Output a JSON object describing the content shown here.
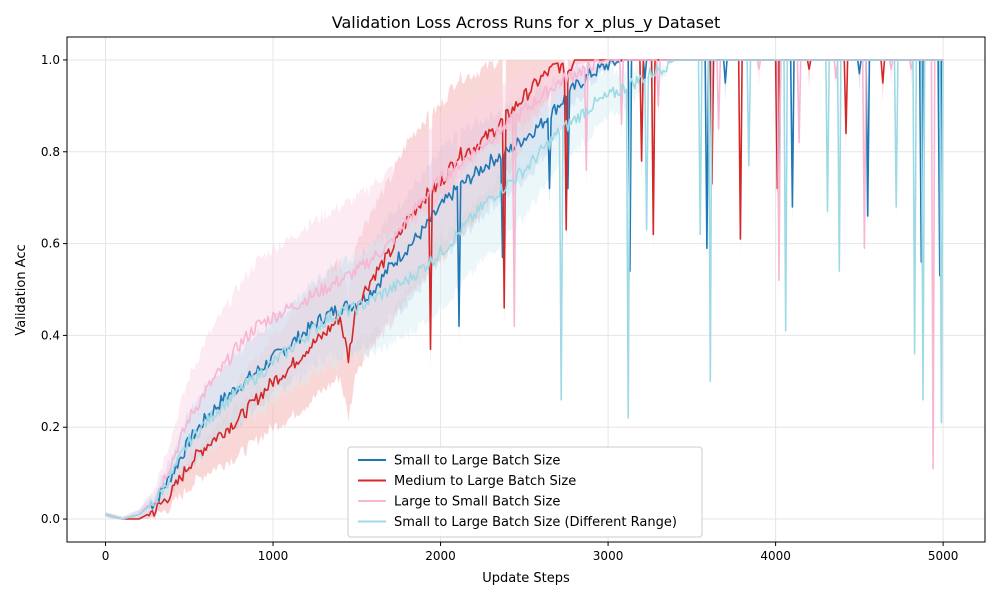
{
  "chart_data": {
    "type": "line",
    "title": "Validation Loss Across Runs for x_plus_y Dataset",
    "xlabel": "Update Steps",
    "ylabel": "Validation Acc",
    "xlim": [
      -230,
      5250
    ],
    "ylim": [
      -0.05,
      1.05
    ],
    "xticks": [
      0,
      1000,
      2000,
      3000,
      4000,
      5000
    ],
    "yticks": [
      0.0,
      0.2,
      0.4,
      0.6,
      0.8,
      1.0
    ],
    "xtick_labels": [
      "0",
      "1000",
      "2000",
      "3000",
      "4000",
      "5000"
    ],
    "ytick_labels": [
      "0.0",
      "0.2",
      "0.4",
      "0.6",
      "0.8",
      "1.0"
    ],
    "grid": true,
    "legend_position": "lower-center",
    "series": [
      {
        "name": "Small to Large Batch Size",
        "color": "#1f77b4",
        "band_color": "#aec7e8",
        "x": [
          0,
          100,
          200,
          300,
          400,
          500,
          600,
          700,
          800,
          900,
          1000,
          1100,
          1200,
          1300,
          1400,
          1500,
          1600,
          1700,
          1800,
          1900,
          2000,
          2100,
          2200,
          2300,
          2400,
          2500,
          2600,
          2700,
          2800,
          2900,
          3000,
          3100,
          3200,
          3300,
          3500,
          4000,
          4500,
          5000
        ],
        "y": [
          0.01,
          0.0,
          0.01,
          0.04,
          0.1,
          0.17,
          0.22,
          0.26,
          0.29,
          0.32,
          0.35,
          0.38,
          0.41,
          0.44,
          0.46,
          0.47,
          0.5,
          0.55,
          0.59,
          0.63,
          0.68,
          0.72,
          0.75,
          0.78,
          0.8,
          0.83,
          0.86,
          0.9,
          0.94,
          0.97,
          0.99,
          1.0,
          1.0,
          1.0,
          1.0,
          1.0,
          1.0,
          1.0
        ],
        "band": [
          0.005,
          0.005,
          0.01,
          0.02,
          0.04,
          0.06,
          0.07,
          0.07,
          0.08,
          0.08,
          0.08,
          0.08,
          0.09,
          0.09,
          0.1,
          0.1,
          0.11,
          0.11,
          0.12,
          0.12,
          0.12,
          0.12,
          0.11,
          0.1,
          0.1,
          0.09,
          0.08,
          0.06,
          0.04,
          0.02,
          0.01,
          0.0,
          0.0,
          0.0,
          0.0,
          0.0,
          0.0,
          0.0
        ],
        "dips": [
          [
            2110,
            0.42
          ],
          [
            2370,
            0.57
          ],
          [
            2650,
            0.72
          ],
          [
            2760,
            0.72
          ],
          [
            3130,
            0.54
          ],
          [
            3220,
            0.96
          ],
          [
            3590,
            0.59
          ],
          [
            3700,
            0.95
          ],
          [
            4020,
            0.65
          ],
          [
            4100,
            0.68
          ],
          [
            4500,
            0.97
          ],
          [
            4550,
            0.66
          ],
          [
            4870,
            0.56
          ],
          [
            4980,
            0.53
          ]
        ]
      },
      {
        "name": "Medium to Large Batch Size",
        "color": "#d62728",
        "band_color": "#f4a6a6",
        "x": [
          0,
          100,
          200,
          300,
          400,
          500,
          600,
          700,
          800,
          900,
          1000,
          1100,
          1200,
          1300,
          1400,
          1450,
          1500,
          1600,
          1700,
          1800,
          1900,
          2000,
          2100,
          2200,
          2300,
          2400,
          2500,
          2600,
          2700,
          2750,
          2800,
          3000,
          3500,
          4000,
          4500,
          5000
        ],
        "y": [
          0.01,
          0.0,
          0.0,
          0.02,
          0.06,
          0.12,
          0.16,
          0.19,
          0.22,
          0.26,
          0.3,
          0.33,
          0.37,
          0.4,
          0.44,
          0.35,
          0.47,
          0.53,
          0.58,
          0.65,
          0.7,
          0.73,
          0.79,
          0.81,
          0.84,
          0.88,
          0.92,
          0.96,
          0.99,
          0.97,
          1.0,
          1.0,
          1.0,
          1.0,
          1.0,
          1.0
        ],
        "band": [
          0.005,
          0.005,
          0.005,
          0.015,
          0.03,
          0.05,
          0.06,
          0.07,
          0.08,
          0.09,
          0.1,
          0.11,
          0.12,
          0.12,
          0.13,
          0.13,
          0.14,
          0.15,
          0.16,
          0.17,
          0.17,
          0.17,
          0.17,
          0.16,
          0.15,
          0.13,
          0.1,
          0.07,
          0.04,
          0.03,
          0.01,
          0.0,
          0.0,
          0.0,
          0.0,
          0.0
        ],
        "dips": [
          [
            1940,
            0.37
          ],
          [
            2380,
            0.46
          ],
          [
            2750,
            0.63
          ],
          [
            3200,
            0.78
          ],
          [
            3270,
            0.62
          ],
          [
            3620,
            0.73
          ],
          [
            3790,
            0.61
          ],
          [
            4010,
            0.72
          ],
          [
            4200,
            0.98
          ],
          [
            4420,
            0.84
          ],
          [
            4640,
            0.95
          ]
        ]
      },
      {
        "name": "Large to Small Batch Size",
        "color": "#f7b6d2",
        "band_color": "#fbd3e6",
        "x": [
          0,
          100,
          200,
          300,
          400,
          500,
          600,
          700,
          800,
          900,
          1000,
          1100,
          1200,
          1300,
          1400,
          1500,
          1600,
          1700,
          1800,
          1900,
          2000,
          2100,
          2200,
          2300,
          2400,
          2500,
          2600,
          2700,
          2800,
          2900,
          3000,
          3100,
          3200,
          3500,
          4000,
          4500,
          5000
        ],
        "y": [
          0.01,
          0.0,
          0.01,
          0.05,
          0.13,
          0.22,
          0.28,
          0.33,
          0.38,
          0.42,
          0.44,
          0.46,
          0.48,
          0.5,
          0.52,
          0.54,
          0.57,
          0.6,
          0.65,
          0.7,
          0.74,
          0.77,
          0.8,
          0.83,
          0.86,
          0.89,
          0.92,
          0.95,
          0.97,
          0.99,
          1.0,
          1.0,
          1.0,
          1.0,
          1.0,
          1.0,
          1.0
        ],
        "band": [
          0.005,
          0.005,
          0.01,
          0.03,
          0.06,
          0.09,
          0.11,
          0.12,
          0.13,
          0.14,
          0.15,
          0.15,
          0.16,
          0.16,
          0.16,
          0.16,
          0.16,
          0.16,
          0.15,
          0.14,
          0.13,
          0.12,
          0.11,
          0.1,
          0.09,
          0.08,
          0.06,
          0.04,
          0.03,
          0.02,
          0.01,
          0.0,
          0.0,
          0.0,
          0.0,
          0.0,
          0.0
        ],
        "dips": [
          [
            2440,
            0.42
          ],
          [
            2870,
            0.76
          ],
          [
            3080,
            0.86
          ],
          [
            3300,
            0.9
          ],
          [
            3660,
            0.85
          ],
          [
            3900,
            0.98
          ],
          [
            4020,
            0.52
          ],
          [
            4140,
            0.82
          ],
          [
            4360,
            0.96
          ],
          [
            4530,
            0.59
          ],
          [
            4690,
            0.98
          ],
          [
            4810,
            0.98
          ],
          [
            4940,
            0.11
          ]
        ]
      },
      {
        "name": "Small to Large Batch Size (Different Range)",
        "color": "#9edae5",
        "band_color": "#d4eef3",
        "x": [
          0,
          100,
          200,
          300,
          400,
          500,
          600,
          700,
          800,
          900,
          1000,
          1100,
          1200,
          1300,
          1400,
          1500,
          1600,
          1700,
          1800,
          1900,
          2000,
          2100,
          2200,
          2300,
          2400,
          2500,
          2600,
          2700,
          2800,
          2900,
          3000,
          3100,
          3200,
          3300,
          3400,
          3500,
          4000,
          4500,
          5000
        ],
        "y": [
          0.01,
          0.0,
          0.01,
          0.04,
          0.1,
          0.17,
          0.21,
          0.25,
          0.28,
          0.31,
          0.34,
          0.37,
          0.4,
          0.43,
          0.45,
          0.46,
          0.48,
          0.5,
          0.52,
          0.55,
          0.58,
          0.62,
          0.66,
          0.7,
          0.73,
          0.76,
          0.8,
          0.84,
          0.87,
          0.9,
          0.92,
          0.94,
          0.96,
          0.98,
          1.0,
          1.0,
          1.0,
          1.0,
          1.0
        ],
        "band": [
          0.005,
          0.005,
          0.01,
          0.02,
          0.04,
          0.06,
          0.07,
          0.07,
          0.08,
          0.08,
          0.09,
          0.09,
          0.1,
          0.1,
          0.11,
          0.11,
          0.12,
          0.12,
          0.12,
          0.12,
          0.12,
          0.12,
          0.12,
          0.12,
          0.11,
          0.1,
          0.09,
          0.08,
          0.07,
          0.06,
          0.05,
          0.04,
          0.03,
          0.02,
          0.0,
          0.0,
          0.0,
          0.0,
          0.0
        ],
        "dips": [
          [
            2720,
            0.26
          ],
          [
            3120,
            0.22
          ],
          [
            3230,
            0.63
          ],
          [
            3550,
            0.62
          ],
          [
            3610,
            0.3
          ],
          [
            3840,
            0.77
          ],
          [
            4060,
            0.41
          ],
          [
            4310,
            0.67
          ],
          [
            4380,
            0.54
          ],
          [
            4720,
            0.68
          ],
          [
            4830,
            0.36
          ],
          [
            4880,
            0.26
          ],
          [
            4990,
            0.21
          ]
        ]
      }
    ]
  }
}
